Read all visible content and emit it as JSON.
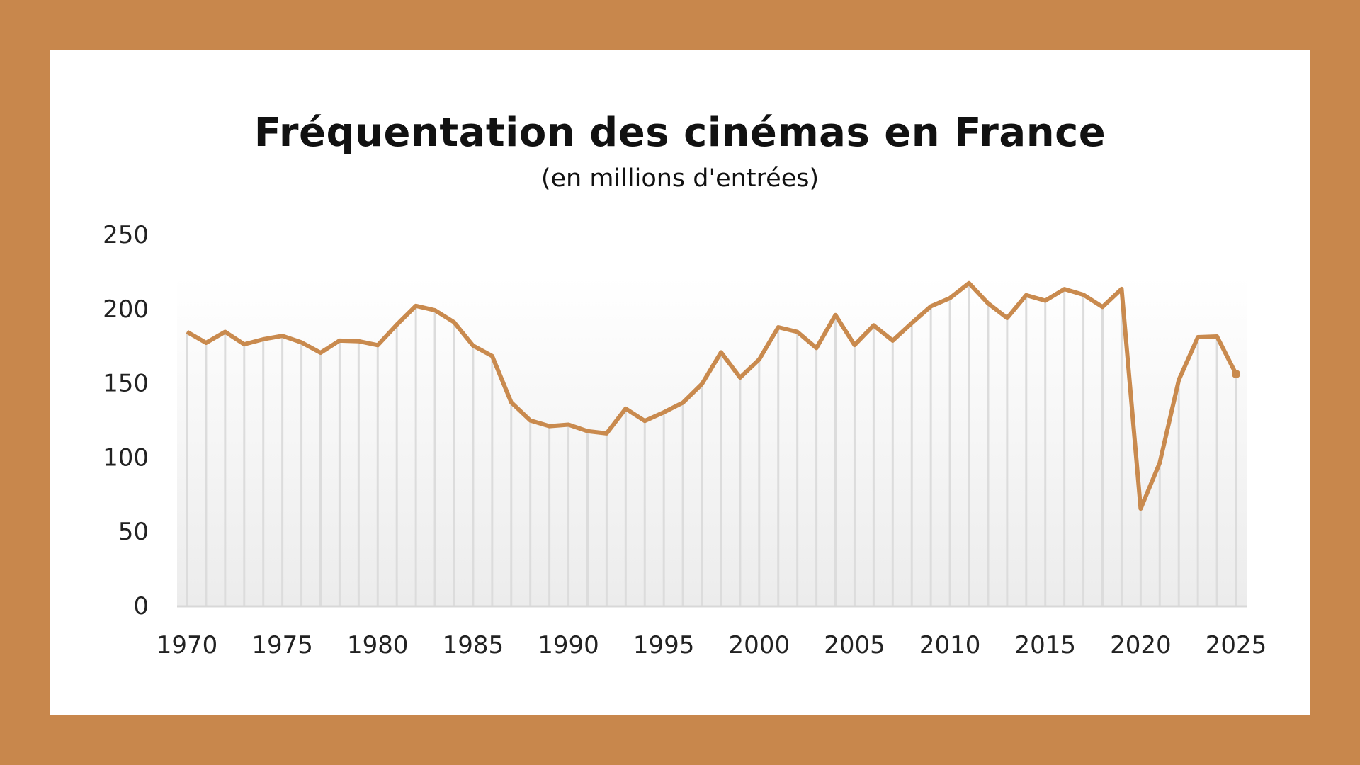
{
  "chart_data": {
    "type": "line",
    "title": "Fréquentation des cinémas en France",
    "subtitle": "(en millions d'entrées)",
    "xlabel": "",
    "ylabel": "",
    "ylim": [
      0,
      250
    ],
    "yticks": [
      0,
      50,
      100,
      150,
      200,
      250
    ],
    "xticks": [
      1970,
      1975,
      1980,
      1985,
      1990,
      1995,
      2000,
      2005,
      2010,
      2015,
      2020,
      2025
    ],
    "grid": "vertical drop lines per year",
    "colors": {
      "line": "#C98A4E",
      "frame": "#C8874C"
    },
    "x": [
      1970,
      1971,
      1972,
      1973,
      1974,
      1975,
      1976,
      1977,
      1978,
      1979,
      1980,
      1981,
      1982,
      1983,
      1984,
      1985,
      1986,
      1987,
      1988,
      1989,
      1990,
      1991,
      1992,
      1993,
      1994,
      1995,
      1996,
      1997,
      1998,
      1999,
      2000,
      2001,
      2002,
      2003,
      2004,
      2005,
      2006,
      2007,
      2008,
      2009,
      2010,
      2011,
      2012,
      2013,
      2014,
      2015,
      2016,
      2017,
      2018,
      2019,
      2020,
      2021,
      2022,
      2023,
      2024,
      2025
    ],
    "values": [
      184.4,
      177,
      184.4,
      176,
      179.4,
      181.7,
      177.3,
      170.3,
      178.5,
      178.1,
      175.4,
      189.2,
      201.9,
      198.9,
      190.9,
      175.1,
      168.1,
      136.9,
      124.7,
      120.9,
      121.9,
      117.5,
      116,
      132.7,
      124.4,
      130.2,
      136.7,
      149.3,
      170.6,
      153.6,
      165.8,
      187.5,
      184.4,
      173.5,
      195.7,
      175.5,
      188.8,
      178.5,
      190.3,
      201.6,
      207.1,
      217.2,
      203.6,
      193.7,
      209.1,
      205.4,
      213.2,
      209.4,
      201.2,
      213.3,
      65.3,
      96.2,
      152,
      180.8,
      181.3,
      156
    ]
  }
}
